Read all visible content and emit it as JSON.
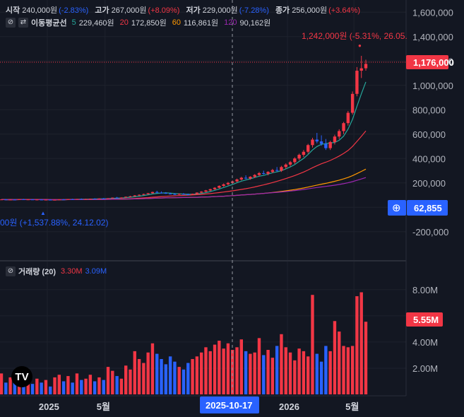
{
  "legend": {
    "open_label": "시작",
    "open_value": "240,000원",
    "open_change": "(-2.83%)",
    "high_label": "고가",
    "high_value": "267,000원",
    "high_change": "(+8.09%)",
    "low_label": "저가",
    "low_value": "229,000원",
    "low_change": "(-7.28%)",
    "close_label": "종가",
    "close_value": "256,000원",
    "close_change": "(+3.64%)"
  },
  "ma_legend": {
    "title": "이동평균선",
    "items": [
      {
        "period": "5",
        "value": "229,460원",
        "color": "#26a69a"
      },
      {
        "period": "20",
        "value": "172,850원",
        "color": "#f23645"
      },
      {
        "period": "60",
        "value": "116,861원",
        "color": "#ff9800"
      },
      {
        "period": "120",
        "value": "90,162원",
        "color": "#9c27b0"
      }
    ]
  },
  "volume_legend": {
    "title": "거래량 (20)",
    "value1": "3.30M",
    "value2": "3.09M"
  },
  "annotations": {
    "high_label": "1,242,000원 (-5.31%, 26.05.",
    "low_label": "00원 (+1,537.88%, 24.12.02)"
  },
  "price_axis": {
    "ticks": [
      "1,600,000",
      "1,400,000",
      "1,200,000",
      "1,000,000",
      "800,000",
      "600,000",
      "400,000",
      "200,000",
      "0",
      "-200,000"
    ],
    "last_price_tag": "1,176,000",
    "crosshair_value": "62,855"
  },
  "volume_axis": {
    "ticks": [
      "8.00M",
      "6.00M",
      "4.00M",
      "2.00M"
    ],
    "last_volume_tag": "5.55M"
  },
  "time_axis": {
    "labels": [
      "2025",
      "5월",
      "2026",
      "5월"
    ],
    "crosshair_date": "2025-10-17"
  },
  "colors": {
    "up": "#f23645",
    "down": "#2962ff",
    "background": "#131722",
    "grid": "#1e222d",
    "crosshair_label": "#2962ff"
  },
  "chart_data": {
    "type": "candlestick",
    "price_range": [
      -300000,
      1700000
    ],
    "volume_range": [
      0,
      8800000
    ],
    "candles": [
      {
        "o": 62000,
        "h": 66000,
        "l": 60000,
        "c": 64000,
        "v": 1600000
      },
      {
        "o": 64000,
        "h": 68000,
        "l": 62000,
        "c": 61000,
        "v": 900000
      },
      {
        "o": 61000,
        "h": 65000,
        "l": 59000,
        "c": 63000,
        "v": 1300000
      },
      {
        "o": 63000,
        "h": 67000,
        "l": 61000,
        "c": 62000,
        "v": 1100000
      },
      {
        "o": 62000,
        "h": 66000,
        "l": 60000,
        "c": 65000,
        "v": 1400000
      },
      {
        "o": 65000,
        "h": 69000,
        "l": 63000,
        "c": 63000,
        "v": 700000
      },
      {
        "o": 63000,
        "h": 66000,
        "l": 60000,
        "c": 64000,
        "v": 1000000
      },
      {
        "o": 64000,
        "h": 68000,
        "l": 62000,
        "c": 62000,
        "v": 800000
      },
      {
        "o": 62000,
        "h": 65000,
        "l": 59000,
        "c": 63000,
        "v": 1200000
      },
      {
        "o": 63000,
        "h": 67000,
        "l": 61000,
        "c": 61000,
        "v": 900000
      },
      {
        "o": 61000,
        "h": 64000,
        "l": 58000,
        "c": 62000,
        "v": 1100000
      },
      {
        "o": 62000,
        "h": 66000,
        "l": 60000,
        "c": 60000,
        "v": 600000
      },
      {
        "o": 60000,
        "h": 63000,
        "l": 57000,
        "c": 61000,
        "v": 1300000
      },
      {
        "o": 61000,
        "h": 65000,
        "l": 59000,
        "c": 64000,
        "v": 1500000
      },
      {
        "o": 64000,
        "h": 68000,
        "l": 62000,
        "c": 63000,
        "v": 1000000
      },
      {
        "o": 63000,
        "h": 67000,
        "l": 61000,
        "c": 66000,
        "v": 1400000
      },
      {
        "o": 66000,
        "h": 70000,
        "l": 64000,
        "c": 65000,
        "v": 900000
      },
      {
        "o": 65000,
        "h": 69000,
        "l": 63000,
        "c": 68000,
        "v": 1600000
      },
      {
        "o": 68000,
        "h": 72000,
        "l": 66000,
        "c": 66000,
        "v": 1100000
      },
      {
        "o": 66000,
        "h": 70000,
        "l": 64000,
        "c": 67000,
        "v": 1200000
      },
      {
        "o": 67000,
        "h": 71000,
        "l": 65000,
        "c": 70000,
        "v": 1500000
      },
      {
        "o": 70000,
        "h": 74000,
        "l": 68000,
        "c": 69000,
        "v": 1000000
      },
      {
        "o": 69000,
        "h": 73000,
        "l": 67000,
        "c": 72000,
        "v": 1300000
      },
      {
        "o": 72000,
        "h": 76000,
        "l": 70000,
        "c": 71000,
        "v": 1100000
      },
      {
        "o": 71000,
        "h": 75000,
        "l": 69000,
        "c": 74000,
        "v": 2100000
      },
      {
        "o": 74000,
        "h": 80000,
        "l": 72000,
        "c": 79000,
        "v": 1800000
      },
      {
        "o": 79000,
        "h": 85000,
        "l": 77000,
        "c": 77000,
        "v": 1400000
      },
      {
        "o": 77000,
        "h": 82000,
        "l": 75000,
        "c": 80000,
        "v": 1200000
      },
      {
        "o": 80000,
        "h": 88000,
        "l": 78000,
        "c": 86000,
        "v": 2200000
      },
      {
        "o": 86000,
        "h": 94000,
        "l": 84000,
        "c": 90000,
        "v": 1900000
      },
      {
        "o": 90000,
        "h": 100000,
        "l": 88000,
        "c": 97000,
        "v": 3300000
      },
      {
        "o": 97000,
        "h": 106000,
        "l": 94000,
        "c": 102000,
        "v": 2700000
      },
      {
        "o": 102000,
        "h": 112000,
        "l": 99000,
        "c": 108000,
        "v": 2400000
      },
      {
        "o": 108000,
        "h": 118000,
        "l": 104000,
        "c": 115000,
        "v": 3200000
      },
      {
        "o": 115000,
        "h": 128000,
        "l": 112000,
        "c": 125000,
        "v": 3900000
      },
      {
        "o": 125000,
        "h": 135000,
        "l": 118000,
        "c": 120000,
        "v": 3100000
      },
      {
        "o": 120000,
        "h": 130000,
        "l": 113000,
        "c": 117000,
        "v": 2700000
      },
      {
        "o": 117000,
        "h": 124000,
        "l": 110000,
        "c": 112000,
        "v": 2300000
      },
      {
        "o": 112000,
        "h": 120000,
        "l": 106000,
        "c": 108000,
        "v": 2900000
      },
      {
        "o": 108000,
        "h": 116000,
        "l": 102000,
        "c": 106000,
        "v": 2500000
      },
      {
        "o": 106000,
        "h": 113000,
        "l": 100000,
        "c": 110000,
        "v": 2100000
      },
      {
        "o": 110000,
        "h": 117000,
        "l": 104000,
        "c": 105000,
        "v": 1900000
      },
      {
        "o": 105000,
        "h": 112000,
        "l": 100000,
        "c": 104000,
        "v": 2400000
      },
      {
        "o": 104000,
        "h": 112000,
        "l": 100000,
        "c": 110000,
        "v": 2700000
      },
      {
        "o": 110000,
        "h": 122000,
        "l": 107000,
        "c": 120000,
        "v": 2900000
      },
      {
        "o": 120000,
        "h": 132000,
        "l": 116000,
        "c": 128000,
        "v": 3200000
      },
      {
        "o": 128000,
        "h": 142000,
        "l": 124000,
        "c": 138000,
        "v": 3600000
      },
      {
        "o": 138000,
        "h": 152000,
        "l": 132000,
        "c": 148000,
        "v": 3300000
      },
      {
        "o": 148000,
        "h": 165000,
        "l": 142000,
        "c": 160000,
        "v": 3800000
      },
      {
        "o": 160000,
        "h": 180000,
        "l": 154000,
        "c": 175000,
        "v": 4100000
      },
      {
        "o": 175000,
        "h": 195000,
        "l": 168000,
        "c": 188000,
        "v": 3500000
      },
      {
        "o": 188000,
        "h": 208000,
        "l": 180000,
        "c": 200000,
        "v": 3900000
      },
      {
        "o": 200000,
        "h": 220000,
        "l": 192000,
        "c": 212000,
        "v": 3400000
      },
      {
        "o": 212000,
        "h": 235000,
        "l": 205000,
        "c": 228000,
        "v": 3600000
      },
      {
        "o": 228000,
        "h": 250000,
        "l": 220000,
        "c": 242000,
        "v": 4200000
      },
      {
        "o": 242000,
        "h": 262000,
        "l": 230000,
        "c": 236000,
        "v": 3300000
      },
      {
        "o": 236000,
        "h": 255000,
        "l": 226000,
        "c": 250000,
        "v": 3100000
      },
      {
        "o": 250000,
        "h": 272000,
        "l": 240000,
        "c": 265000,
        "v": 3200000
      },
      {
        "o": 265000,
        "h": 290000,
        "l": 255000,
        "c": 280000,
        "v": 4300000
      },
      {
        "o": 280000,
        "h": 300000,
        "l": 268000,
        "c": 275000,
        "v": 3000000
      },
      {
        "o": 275000,
        "h": 296000,
        "l": 262000,
        "c": 290000,
        "v": 3400000
      },
      {
        "o": 290000,
        "h": 315000,
        "l": 280000,
        "c": 305000,
        "v": 2800000
      },
      {
        "o": 305000,
        "h": 330000,
        "l": 292000,
        "c": 300000,
        "v": 3700000
      },
      {
        "o": 300000,
        "h": 340000,
        "l": 290000,
        "c": 330000,
        "v": 4600000
      },
      {
        "o": 330000,
        "h": 360000,
        "l": 315000,
        "c": 350000,
        "v": 3600000
      },
      {
        "o": 350000,
        "h": 380000,
        "l": 335000,
        "c": 370000,
        "v": 3200000
      },
      {
        "o": 370000,
        "h": 410000,
        "l": 355000,
        "c": 400000,
        "v": 2600000
      },
      {
        "o": 400000,
        "h": 440000,
        "l": 385000,
        "c": 430000,
        "v": 3500000
      },
      {
        "o": 430000,
        "h": 470000,
        "l": 412000,
        "c": 455000,
        "v": 3300000
      },
      {
        "o": 455000,
        "h": 520000,
        "l": 440000,
        "c": 510000,
        "v": 2900000
      },
      {
        "o": 510000,
        "h": 570000,
        "l": 490000,
        "c": 555000,
        "v": 7600000
      },
      {
        "o": 555000,
        "h": 610000,
        "l": 525000,
        "c": 540000,
        "v": 3100000
      },
      {
        "o": 540000,
        "h": 590000,
        "l": 505000,
        "c": 520000,
        "v": 2500000
      },
      {
        "o": 520000,
        "h": 560000,
        "l": 470000,
        "c": 485000,
        "v": 3700000
      },
      {
        "o": 485000,
        "h": 545000,
        "l": 470000,
        "c": 535000,
        "v": 3300000
      },
      {
        "o": 535000,
        "h": 595000,
        "l": 515000,
        "c": 580000,
        "v": 5600000
      },
      {
        "o": 580000,
        "h": 640000,
        "l": 560000,
        "c": 625000,
        "v": 4800000
      },
      {
        "o": 625000,
        "h": 700000,
        "l": 600000,
        "c": 690000,
        "v": 3700000
      },
      {
        "o": 690000,
        "h": 790000,
        "l": 670000,
        "c": 775000,
        "v": 3600000
      },
      {
        "o": 775000,
        "h": 950000,
        "l": 760000,
        "c": 930000,
        "v": 3700000
      },
      {
        "o": 930000,
        "h": 1150000,
        "l": 910000,
        "c": 1120000,
        "v": 7500000
      },
      {
        "o": 1120000,
        "h": 1242000,
        "l": 1060000,
        "c": 1140000,
        "v": 7800000
      },
      {
        "o": 1140000,
        "h": 1210000,
        "l": 1120000,
        "c": 1176000,
        "v": 5550000
      }
    ]
  }
}
